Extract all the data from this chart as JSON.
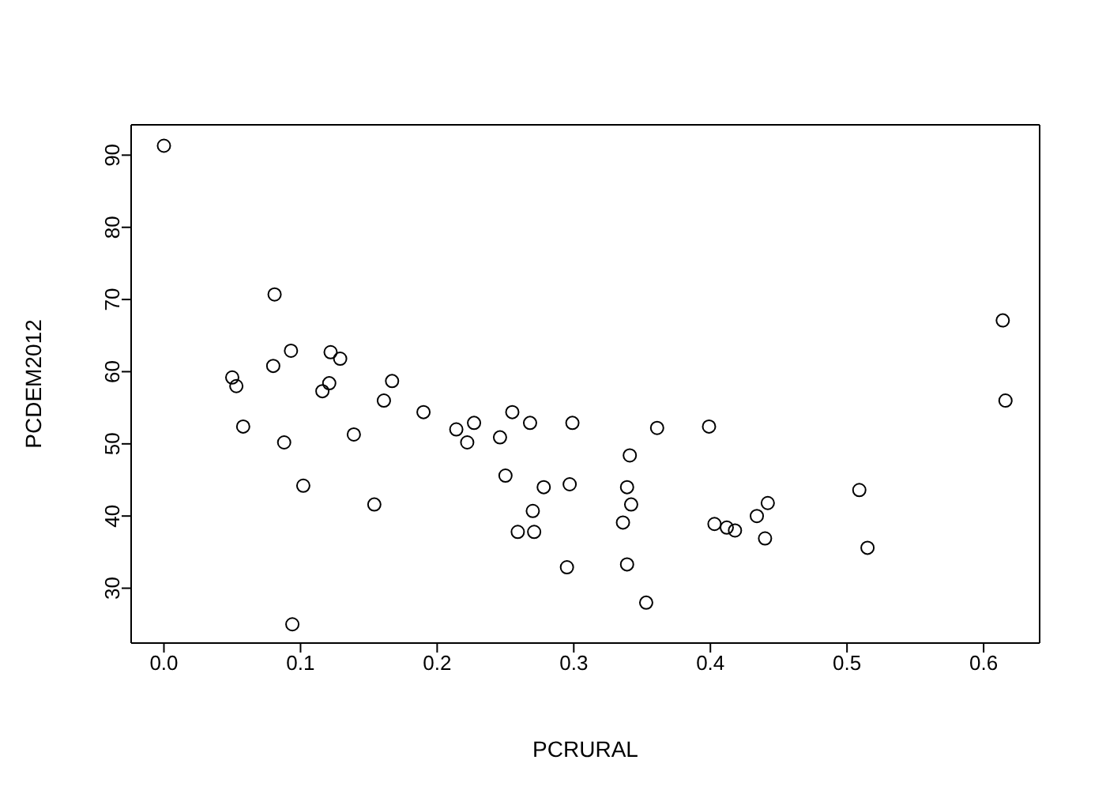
{
  "chart_data": {
    "type": "scatter",
    "xlabel": "PCRURAL",
    "ylabel": "PCDEM2012",
    "marker": "circle",
    "grid": false,
    "xlim": [
      -0.024,
      0.641
    ],
    "ylim": [
      22.4,
      94.2
    ],
    "xticks": [
      {
        "value": 0,
        "label": "0.0"
      },
      0.1,
      0.2,
      0.3,
      0.4,
      0.5,
      0.6
    ],
    "yticks": [
      30,
      40,
      50,
      60,
      70,
      80,
      90
    ],
    "series": [
      {
        "color": "#000000",
        "x": [
          0.0,
          0.081,
          0.05,
          0.053,
          0.058,
          0.093,
          0.08,
          0.088,
          0.094,
          0.102,
          0.116,
          0.121,
          0.122,
          0.129,
          0.139,
          0.154,
          0.161,
          0.167,
          0.19,
          0.214,
          0.222,
          0.227,
          0.246,
          0.25,
          0.255,
          0.259,
          0.268,
          0.27,
          0.271,
          0.278,
          0.295,
          0.297,
          0.299,
          0.336,
          0.339,
          0.339,
          0.341,
          0.342,
          0.353,
          0.361,
          0.399,
          0.403,
          0.412,
          0.418,
          0.434,
          0.44,
          0.442,
          0.509,
          0.515,
          0.614,
          0.616
        ],
        "values": [
          91.3,
          70.7,
          59.2,
          58.0,
          52.4,
          62.9,
          60.8,
          50.2,
          25.0,
          44.2,
          57.3,
          58.4,
          62.7,
          61.8,
          51.3,
          41.6,
          56.0,
          58.7,
          54.4,
          52.0,
          50.2,
          52.9,
          50.9,
          45.6,
          54.4,
          37.8,
          52.9,
          40.7,
          37.8,
          44.0,
          32.9,
          44.4,
          52.9,
          39.1,
          33.3,
          44.0,
          48.4,
          41.6,
          28.0,
          52.2,
          52.4,
          38.9,
          38.4,
          38.0,
          40.0,
          36.9,
          41.8,
          43.6,
          35.6,
          67.1,
          56.0
        ]
      }
    ]
  }
}
